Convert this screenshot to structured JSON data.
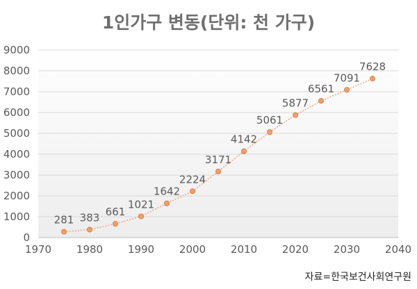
{
  "chart_data": {
    "type": "line",
    "title": "1인가구 변동(단위: 천 가구)",
    "x": [
      1975,
      1980,
      1985,
      1990,
      1995,
      2000,
      2005,
      2010,
      2015,
      2020,
      2025,
      2030,
      2035
    ],
    "series": [
      {
        "values": [
          281,
          383,
          661,
          1021,
          1642,
          2224,
          3171,
          4142,
          5061,
          5877,
          6561,
          7091,
          7628
        ]
      }
    ],
    "xlim": [
      1970,
      2040
    ],
    "ylim": [
      0,
      9000
    ],
    "x_ticks": [
      1970,
      1980,
      1990,
      2000,
      2010,
      2020,
      2030,
      2040
    ],
    "y_ticks": [
      0,
      1000,
      2000,
      3000,
      4000,
      5000,
      6000,
      7000,
      8000,
      9000
    ],
    "grid": "horizontal",
    "colors": {
      "line": "#f4a582",
      "marker_fill": "#f0a070",
      "marker_stroke": "#e07b39",
      "grid": "#d9d9d9"
    },
    "data_labels": true,
    "source": "자료=한국보건사회연구원"
  }
}
